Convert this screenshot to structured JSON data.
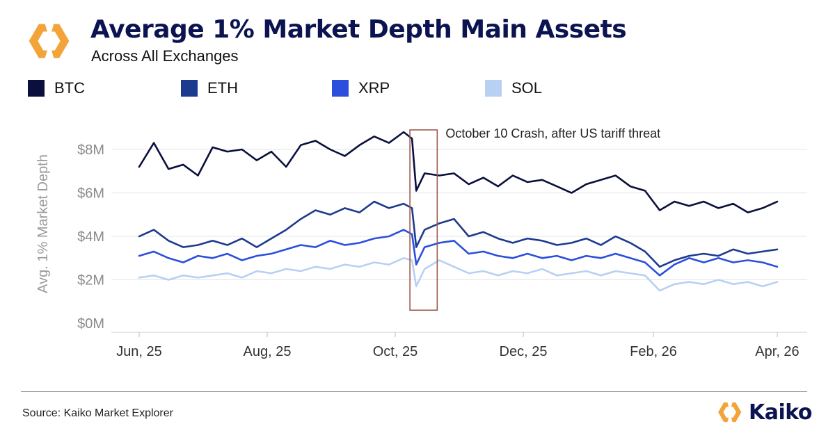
{
  "header": {
    "title": "Average 1% Market Depth Main Assets",
    "subtitle": "Across All Exchanges"
  },
  "legend": [
    {
      "label": "BTC",
      "color": "#0a0f3d"
    },
    {
      "label": "ETH",
      "color": "#1e3a8f"
    },
    {
      "label": "XRP",
      "color": "#2b4fdc"
    },
    {
      "label": "SOL",
      "color": "#b8d0f2"
    }
  ],
  "footer": {
    "source": "Source: Kaiko Market Explorer",
    "brand": "Kaiko"
  },
  "icons": {
    "logo": "kaiko-logo-icon"
  },
  "colors": {
    "title": "#0b1450",
    "logo_orange": "#f2a33a",
    "annotation_box": "#9c5a4e"
  },
  "chart_data": {
    "type": "line",
    "ylabel": "Avg. 1% Market Depth",
    "xlabel": "",
    "yticks": [
      "$0M",
      "$2M",
      "$4M",
      "$6M",
      "$8M"
    ],
    "ytick_values": [
      0,
      2,
      4,
      6,
      8
    ],
    "ylim": [
      0,
      9
    ],
    "xticks": [
      {
        "label": "Jun, 25",
        "date": "2025-06-01"
      },
      {
        "label": "Aug, 25",
        "date": "2025-08-01"
      },
      {
        "label": "Oct, 25",
        "date": "2025-10-01"
      },
      {
        "label": "Dec, 25",
        "date": "2025-12-01"
      },
      {
        "label": "Feb, 26",
        "date": "2026-02-01"
      },
      {
        "label": "Apr, 26",
        "date": "2026-04-01"
      }
    ],
    "grid": true,
    "legend_position": "top",
    "annotation": {
      "text": "October 10 Crash, after US tariff threat",
      "date_range": [
        "2025-10-08",
        "2025-10-21"
      ],
      "value_range": [
        0.6,
        8.9
      ]
    },
    "series": [
      {
        "name": "BTC",
        "color": "#0a0f3d",
        "points": [
          [
            "2025-06-01",
            7.2
          ],
          [
            "2025-06-08",
            8.3
          ],
          [
            "2025-06-15",
            7.1
          ],
          [
            "2025-06-22",
            7.3
          ],
          [
            "2025-06-29",
            6.8
          ],
          [
            "2025-07-06",
            8.1
          ],
          [
            "2025-07-13",
            7.9
          ],
          [
            "2025-07-20",
            8.0
          ],
          [
            "2025-07-27",
            7.5
          ],
          [
            "2025-08-03",
            7.9
          ],
          [
            "2025-08-10",
            7.2
          ],
          [
            "2025-08-17",
            8.2
          ],
          [
            "2025-08-24",
            8.4
          ],
          [
            "2025-08-31",
            8.0
          ],
          [
            "2025-09-07",
            7.7
          ],
          [
            "2025-09-14",
            8.2
          ],
          [
            "2025-09-21",
            8.6
          ],
          [
            "2025-09-28",
            8.3
          ],
          [
            "2025-10-05",
            8.8
          ],
          [
            "2025-10-09",
            8.5
          ],
          [
            "2025-10-11",
            6.1
          ],
          [
            "2025-10-15",
            6.9
          ],
          [
            "2025-10-22",
            6.8
          ],
          [
            "2025-10-29",
            6.9
          ],
          [
            "2025-11-05",
            6.4
          ],
          [
            "2025-11-12",
            6.7
          ],
          [
            "2025-11-19",
            6.3
          ],
          [
            "2025-11-26",
            6.8
          ],
          [
            "2025-12-03",
            6.5
          ],
          [
            "2025-12-10",
            6.6
          ],
          [
            "2025-12-17",
            6.3
          ],
          [
            "2025-12-24",
            6.0
          ],
          [
            "2025-12-31",
            6.4
          ],
          [
            "2026-01-07",
            6.6
          ],
          [
            "2026-01-14",
            6.8
          ],
          [
            "2026-01-21",
            6.3
          ],
          [
            "2026-01-28",
            6.1
          ],
          [
            "2026-02-04",
            5.2
          ],
          [
            "2026-02-11",
            5.6
          ],
          [
            "2026-02-18",
            5.4
          ],
          [
            "2026-02-25",
            5.6
          ],
          [
            "2026-03-04",
            5.3
          ],
          [
            "2026-03-11",
            5.5
          ],
          [
            "2026-03-18",
            5.1
          ],
          [
            "2026-03-25",
            5.3
          ],
          [
            "2026-04-01",
            5.6
          ]
        ]
      },
      {
        "name": "ETH",
        "color": "#1e3a8f",
        "points": [
          [
            "2025-06-01",
            4.0
          ],
          [
            "2025-06-08",
            4.3
          ],
          [
            "2025-06-15",
            3.8
          ],
          [
            "2025-06-22",
            3.5
          ],
          [
            "2025-06-29",
            3.6
          ],
          [
            "2025-07-06",
            3.8
          ],
          [
            "2025-07-13",
            3.6
          ],
          [
            "2025-07-20",
            3.9
          ],
          [
            "2025-07-27",
            3.5
          ],
          [
            "2025-08-03",
            3.9
          ],
          [
            "2025-08-10",
            4.3
          ],
          [
            "2025-08-17",
            4.8
          ],
          [
            "2025-08-24",
            5.2
          ],
          [
            "2025-08-31",
            5.0
          ],
          [
            "2025-09-07",
            5.3
          ],
          [
            "2025-09-14",
            5.1
          ],
          [
            "2025-09-21",
            5.6
          ],
          [
            "2025-09-28",
            5.3
          ],
          [
            "2025-10-05",
            5.5
          ],
          [
            "2025-10-09",
            5.3
          ],
          [
            "2025-10-11",
            3.5
          ],
          [
            "2025-10-15",
            4.3
          ],
          [
            "2025-10-22",
            4.6
          ],
          [
            "2025-10-29",
            4.8
          ],
          [
            "2025-11-05",
            4.0
          ],
          [
            "2025-11-12",
            4.2
          ],
          [
            "2025-11-19",
            3.9
          ],
          [
            "2025-11-26",
            3.7
          ],
          [
            "2025-12-03",
            3.9
          ],
          [
            "2025-12-10",
            3.8
          ],
          [
            "2025-12-17",
            3.6
          ],
          [
            "2025-12-24",
            3.7
          ],
          [
            "2025-12-31",
            3.9
          ],
          [
            "2026-01-07",
            3.6
          ],
          [
            "2026-01-14",
            4.0
          ],
          [
            "2026-01-21",
            3.7
          ],
          [
            "2026-01-28",
            3.3
          ],
          [
            "2026-02-04",
            2.6
          ],
          [
            "2026-02-11",
            2.9
          ],
          [
            "2026-02-18",
            3.1
          ],
          [
            "2026-02-25",
            3.2
          ],
          [
            "2026-03-04",
            3.1
          ],
          [
            "2026-03-11",
            3.4
          ],
          [
            "2026-03-18",
            3.2
          ],
          [
            "2026-03-25",
            3.3
          ],
          [
            "2026-04-01",
            3.4
          ]
        ]
      },
      {
        "name": "XRP",
        "color": "#2b4fdc",
        "points": [
          [
            "2025-06-01",
            3.1
          ],
          [
            "2025-06-08",
            3.3
          ],
          [
            "2025-06-15",
            3.0
          ],
          [
            "2025-06-22",
            2.8
          ],
          [
            "2025-06-29",
            3.1
          ],
          [
            "2025-07-06",
            3.0
          ],
          [
            "2025-07-13",
            3.2
          ],
          [
            "2025-07-20",
            2.9
          ],
          [
            "2025-07-27",
            3.1
          ],
          [
            "2025-08-03",
            3.2
          ],
          [
            "2025-08-10",
            3.4
          ],
          [
            "2025-08-17",
            3.6
          ],
          [
            "2025-08-24",
            3.5
          ],
          [
            "2025-08-31",
            3.8
          ],
          [
            "2025-09-07",
            3.6
          ],
          [
            "2025-09-14",
            3.7
          ],
          [
            "2025-09-21",
            3.9
          ],
          [
            "2025-09-28",
            4.0
          ],
          [
            "2025-10-05",
            4.3
          ],
          [
            "2025-10-09",
            4.1
          ],
          [
            "2025-10-11",
            2.7
          ],
          [
            "2025-10-15",
            3.5
          ],
          [
            "2025-10-22",
            3.7
          ],
          [
            "2025-10-29",
            3.8
          ],
          [
            "2025-11-05",
            3.2
          ],
          [
            "2025-11-12",
            3.3
          ],
          [
            "2025-11-19",
            3.1
          ],
          [
            "2025-11-26",
            3.0
          ],
          [
            "2025-12-03",
            3.2
          ],
          [
            "2025-12-10",
            3.0
          ],
          [
            "2025-12-17",
            3.1
          ],
          [
            "2025-12-24",
            2.9
          ],
          [
            "2025-12-31",
            3.1
          ],
          [
            "2026-01-07",
            3.0
          ],
          [
            "2026-01-14",
            3.2
          ],
          [
            "2026-01-21",
            3.0
          ],
          [
            "2026-01-28",
            2.8
          ],
          [
            "2026-02-04",
            2.2
          ],
          [
            "2026-02-11",
            2.7
          ],
          [
            "2026-02-18",
            3.0
          ],
          [
            "2026-02-25",
            2.8
          ],
          [
            "2026-03-04",
            3.0
          ],
          [
            "2026-03-11",
            2.8
          ],
          [
            "2026-03-18",
            2.9
          ],
          [
            "2026-03-25",
            2.8
          ],
          [
            "2026-04-01",
            2.6
          ]
        ]
      },
      {
        "name": "SOL",
        "color": "#b8d0f2",
        "points": [
          [
            "2025-06-01",
            2.1
          ],
          [
            "2025-06-08",
            2.2
          ],
          [
            "2025-06-15",
            2.0
          ],
          [
            "2025-06-22",
            2.2
          ],
          [
            "2025-06-29",
            2.1
          ],
          [
            "2025-07-06",
            2.2
          ],
          [
            "2025-07-13",
            2.3
          ],
          [
            "2025-07-20",
            2.1
          ],
          [
            "2025-07-27",
            2.4
          ],
          [
            "2025-08-03",
            2.3
          ],
          [
            "2025-08-10",
            2.5
          ],
          [
            "2025-08-17",
            2.4
          ],
          [
            "2025-08-24",
            2.6
          ],
          [
            "2025-08-31",
            2.5
          ],
          [
            "2025-09-07",
            2.7
          ],
          [
            "2025-09-14",
            2.6
          ],
          [
            "2025-09-21",
            2.8
          ],
          [
            "2025-09-28",
            2.7
          ],
          [
            "2025-10-05",
            3.0
          ],
          [
            "2025-10-09",
            2.9
          ],
          [
            "2025-10-11",
            1.7
          ],
          [
            "2025-10-15",
            2.5
          ],
          [
            "2025-10-22",
            2.9
          ],
          [
            "2025-10-29",
            2.6
          ],
          [
            "2025-11-05",
            2.3
          ],
          [
            "2025-11-12",
            2.4
          ],
          [
            "2025-11-19",
            2.2
          ],
          [
            "2025-11-26",
            2.4
          ],
          [
            "2025-12-03",
            2.3
          ],
          [
            "2025-12-10",
            2.5
          ],
          [
            "2025-12-17",
            2.2
          ],
          [
            "2025-12-24",
            2.3
          ],
          [
            "2025-12-31",
            2.4
          ],
          [
            "2026-01-07",
            2.2
          ],
          [
            "2026-01-14",
            2.4
          ],
          [
            "2026-01-21",
            2.3
          ],
          [
            "2026-01-28",
            2.2
          ],
          [
            "2026-02-04",
            1.5
          ],
          [
            "2026-02-11",
            1.8
          ],
          [
            "2026-02-18",
            1.9
          ],
          [
            "2026-02-25",
            1.8
          ],
          [
            "2026-03-04",
            2.0
          ],
          [
            "2026-03-11",
            1.8
          ],
          [
            "2026-03-18",
            1.9
          ],
          [
            "2026-03-25",
            1.7
          ],
          [
            "2026-04-01",
            1.9
          ]
        ]
      }
    ]
  }
}
